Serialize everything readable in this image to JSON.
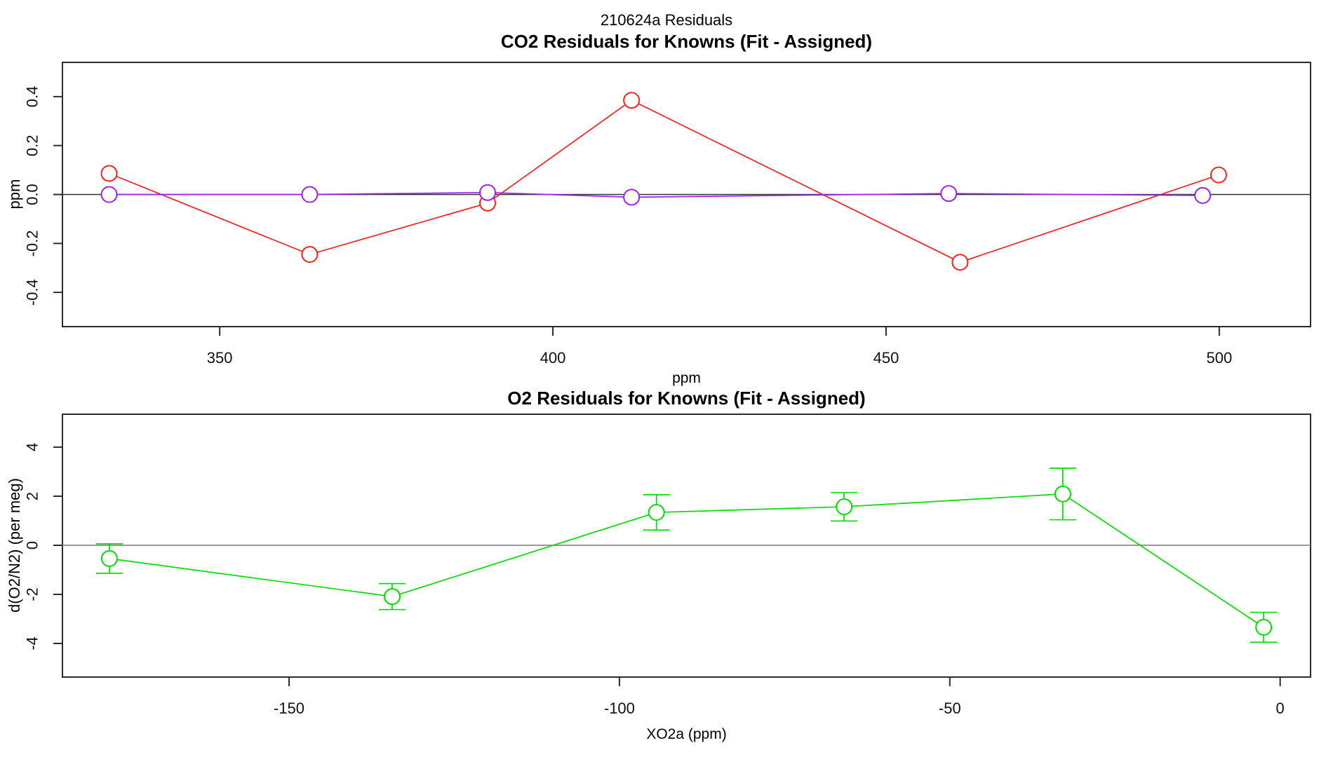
{
  "page_title": "210624a  Residuals",
  "background": "#ffffff",
  "axis_color": "#2b2b2b",
  "chart_data": [
    {
      "type": "line",
      "title": "CO2 Residuals for Knowns (Fit - Assigned)",
      "xlabel": "ppm",
      "ylabel": "ppm",
      "xlim": [
        326.4,
        513.7
      ],
      "ylim": [
        -0.54,
        0.54
      ],
      "grid": false,
      "legend": "none",
      "xticks": {
        "values": [
          350,
          400,
          450,
          500
        ],
        "labels": [
          "350",
          "400",
          "450",
          "500"
        ]
      },
      "yticks": {
        "values": [
          -0.4,
          -0.2,
          0,
          0.2,
          0.4
        ],
        "labels": [
          "-0.4",
          "-0.2",
          "0.0",
          "0.2",
          "0.4"
        ]
      },
      "zero_line": {
        "y": 0,
        "color": "#303030"
      },
      "series": [
        {
          "name": "co2-residual-red",
          "color": "#ff2020",
          "marker": "open-circle",
          "x": [
            333.4,
            363.5,
            390.2,
            411.8,
            461.1,
            499.9
          ],
          "y": [
            0.086,
            -0.245,
            -0.035,
            0.385,
            -0.277,
            0.08
          ]
        },
        {
          "name": "co2-residual-purple",
          "color": "#a020f0",
          "marker": "open-circle",
          "x": [
            333.4,
            363.5,
            390.2,
            411.8,
            459.4,
            497.5
          ],
          "y": [
            0.0,
            0.0,
            0.008,
            -0.011,
            0.004,
            -0.004
          ]
        }
      ]
    },
    {
      "type": "line",
      "title": "O2 Residuals for Knowns (Fit - Assigned)",
      "xlabel": "XO2a (ppm)",
      "ylabel": "d(O2/N2) (per meg)",
      "xlim": [
        -184.3,
        4.6
      ],
      "ylim": [
        -5.37,
        5.34
      ],
      "grid": false,
      "legend": "none",
      "xticks": {
        "values": [
          -150,
          -100,
          -50,
          0
        ],
        "labels": [
          "-150",
          "-100",
          "-50",
          "0"
        ]
      },
      "yticks": {
        "values": [
          -4,
          -2,
          0,
          2,
          4
        ],
        "labels": [
          "-4",
          "-2",
          "0",
          "2",
          "4"
        ]
      },
      "zero_line": {
        "y": 0,
        "color": "#808080"
      },
      "series": [
        {
          "name": "o2-residual-green",
          "color": "#00dd00",
          "marker": "open-circle",
          "x": [
            -177.2,
            -134.4,
            -94.4,
            -66.0,
            -32.9,
            -2.5
          ],
          "y": [
            -0.54,
            -2.09,
            1.34,
            1.57,
            2.09,
            -3.34
          ],
          "yerr": [
            0.6,
            0.53,
            0.72,
            0.58,
            1.05,
            0.61
          ]
        }
      ]
    }
  ]
}
